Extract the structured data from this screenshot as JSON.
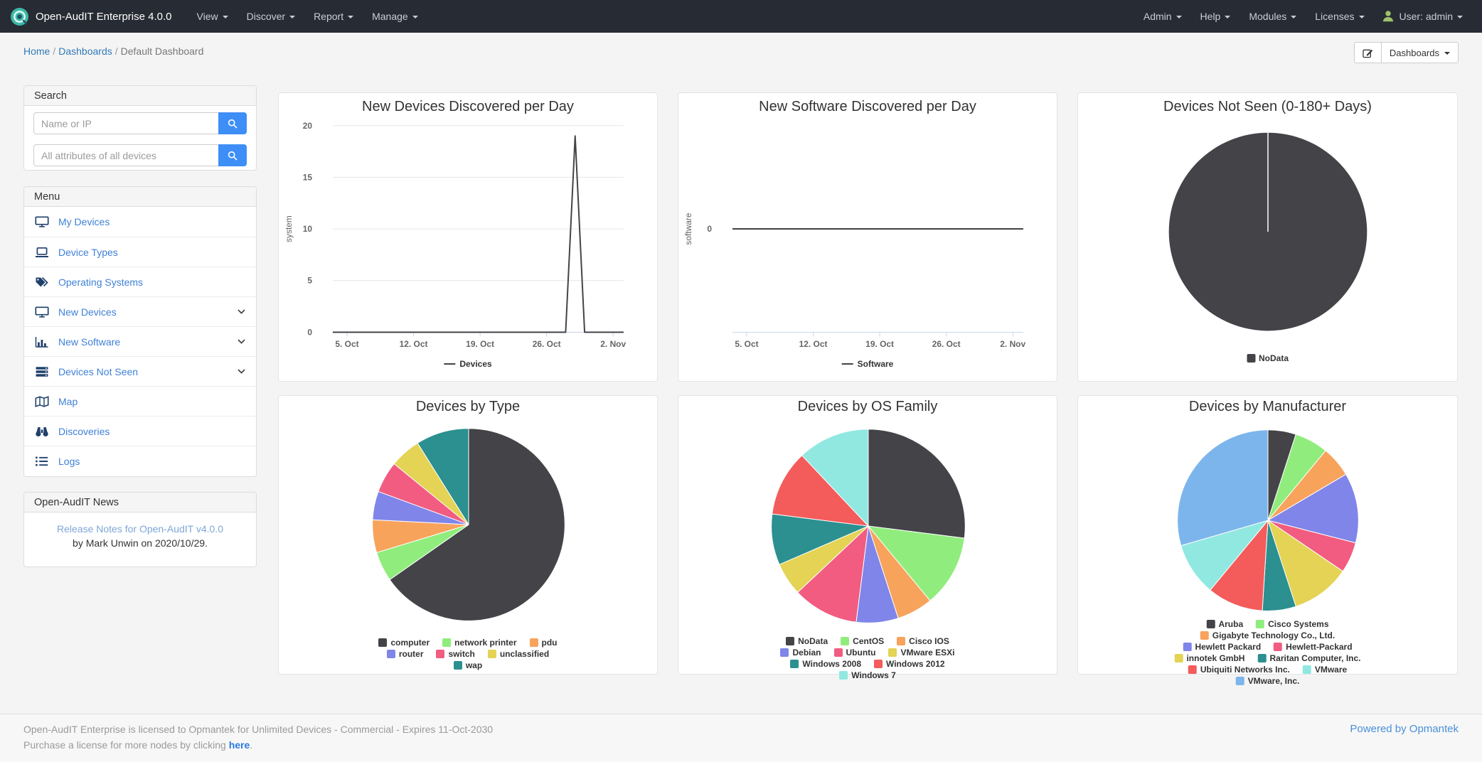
{
  "navbar": {
    "brand": "Open-AudIT Enterprise 4.0.0",
    "left_menus": [
      {
        "label": "View"
      },
      {
        "label": "Discover"
      },
      {
        "label": "Report"
      },
      {
        "label": "Manage"
      }
    ],
    "right_menus": [
      {
        "label": "Admin"
      },
      {
        "label": "Help"
      },
      {
        "label": "Modules"
      },
      {
        "label": "Licenses"
      }
    ],
    "user_label": "User: admin"
  },
  "breadcrumb": {
    "separator": "/",
    "items": [
      {
        "label": "Home",
        "link": true
      },
      {
        "label": "Dashboards",
        "link": true
      },
      {
        "label": "Default Dashboard",
        "link": false
      }
    ],
    "dashboards_button": "Dashboards"
  },
  "sidebar": {
    "search": {
      "title": "Search",
      "inputs": [
        {
          "placeholder": "Name or IP"
        },
        {
          "placeholder": "All attributes of all devices"
        }
      ]
    },
    "menu": {
      "title": "Menu",
      "items": [
        {
          "label": "My Devices",
          "icon": "desktop-icon",
          "expandable": false
        },
        {
          "label": "Device Types",
          "icon": "laptop-icon",
          "expandable": false
        },
        {
          "label": "Operating Systems",
          "icon": "tags-icon",
          "expandable": false
        },
        {
          "label": "New Devices",
          "icon": "desktop-icon",
          "expandable": true
        },
        {
          "label": "New Software",
          "icon": "bar-chart-icon",
          "expandable": true
        },
        {
          "label": "Devices Not Seen",
          "icon": "server-icon",
          "expandable": true
        },
        {
          "label": "Map",
          "icon": "map-icon",
          "expandable": false
        },
        {
          "label": "Discoveries",
          "icon": "binoculars-icon",
          "expandable": false
        },
        {
          "label": "Logs",
          "icon": "list-icon",
          "expandable": false
        }
      ]
    },
    "news": {
      "title": "Open-AudIT News",
      "link": "Release Notes for Open-AudIT v4.0.0",
      "byline": "by Mark Unwin on 2020/10/29."
    }
  },
  "footer": {
    "license_line": "Open-AudIT Enterprise is licensed to Opmantek for Unlimited Devices - Commercial - Expires 11-Oct-2030",
    "purchase_prefix": "Purchase a license for more nodes by clicking ",
    "purchase_link": "here",
    "purchase_suffix": ".",
    "powered": "Powered by Opmantek"
  },
  "chart_data": [
    {
      "type": "line",
      "title": "New Devices Discovered per Day",
      "ylabel": "system",
      "xlim": [
        3.5,
        34.1
      ],
      "ylim": [
        0,
        20
      ],
      "y_ticks": [
        0,
        5,
        10,
        15,
        20
      ],
      "x_ticks": [
        [
          5,
          "5. Oct"
        ],
        [
          12,
          "12. Oct"
        ],
        [
          19,
          "19. Oct"
        ],
        [
          26,
          "26. Oct"
        ],
        [
          33,
          "2. Nov"
        ]
      ],
      "grid": true,
      "legend_position": "bottom",
      "series": [
        {
          "name": "Devices",
          "color": "#434348",
          "points": [
            [
              3.5,
              0
            ],
            [
              28,
              0
            ],
            [
              29,
              19
            ],
            [
              30,
              0
            ],
            [
              34.1,
              0
            ]
          ]
        }
      ]
    },
    {
      "type": "line",
      "title": "New Software Discovered per Day",
      "ylabel": "software",
      "xlim": [
        3.5,
        34.1
      ],
      "ylim": [
        -1,
        1
      ],
      "y_ticks": [
        0
      ],
      "x_ticks": [
        [
          5,
          "5. Oct"
        ],
        [
          12,
          "12. Oct"
        ],
        [
          19,
          "19. Oct"
        ],
        [
          26,
          "26. Oct"
        ],
        [
          33,
          "2. Nov"
        ]
      ],
      "grid": false,
      "legend_position": "bottom",
      "series": [
        {
          "name": "Software",
          "color": "#434348",
          "points": [
            [
              3.5,
              0
            ],
            [
              34.1,
              0
            ]
          ]
        }
      ]
    },
    {
      "type": "pie",
      "title": "Devices Not Seen (0-180+ Days)",
      "legend_position": "bottom",
      "slices": [
        {
          "name": "NoData",
          "value": 100,
          "color": "#434348"
        }
      ]
    },
    {
      "type": "pie",
      "title": "Devices by Type",
      "legend_position": "bottom",
      "slices": [
        {
          "name": "computer",
          "value": 65.3,
          "color": "#434348"
        },
        {
          "name": "network printer",
          "value": 5.0,
          "color": "#90ed7d"
        },
        {
          "name": "pdu",
          "value": 5.5,
          "color": "#f7a35c"
        },
        {
          "name": "router",
          "value": 4.8,
          "color": "#8085e9"
        },
        {
          "name": "switch",
          "value": 5.3,
          "color": "#f15c80"
        },
        {
          "name": "unclassified",
          "value": 5.2,
          "color": "#e4d354"
        },
        {
          "name": "wap",
          "value": 8.9,
          "color": "#2b908f"
        }
      ]
    },
    {
      "type": "pie",
      "title": "Devices by OS Family",
      "legend_position": "bottom",
      "slices": [
        {
          "name": "NoData",
          "value": 27,
          "color": "#434348"
        },
        {
          "name": "CentOS",
          "value": 12,
          "color": "#90ed7d"
        },
        {
          "name": "Cisco IOS",
          "value": 6,
          "color": "#f7a35c"
        },
        {
          "name": "Debian",
          "value": 7,
          "color": "#8085e9"
        },
        {
          "name": "Ubuntu",
          "value": 11,
          "color": "#f15c80"
        },
        {
          "name": "VMware ESXi",
          "value": 5.5,
          "color": "#e4d354"
        },
        {
          "name": "Windows 2008",
          "value": 8.5,
          "color": "#2b908f"
        },
        {
          "name": "Windows 2012",
          "value": 11,
          "color": "#f45b5b"
        },
        {
          "name": "Windows 7",
          "value": 12,
          "color": "#91e8e1"
        }
      ]
    },
    {
      "type": "pie",
      "title": "Devices by Manufacturer",
      "legend_position": "bottom",
      "slices": [
        {
          "name": "Aruba",
          "value": 5,
          "color": "#434348"
        },
        {
          "name": "Cisco Systems",
          "value": 6,
          "color": "#90ed7d"
        },
        {
          "name": "Gigabyte Technology Co., Ltd.",
          "value": 5.5,
          "color": "#f7a35c"
        },
        {
          "name": "Hewlett Packard",
          "value": 12.5,
          "color": "#8085e9"
        },
        {
          "name": "Hewlett-Packard",
          "value": 5.5,
          "color": "#f15c80"
        },
        {
          "name": "innotek GmbH",
          "value": 10.5,
          "color": "#e4d354"
        },
        {
          "name": "Raritan Computer, Inc.",
          "value": 6,
          "color": "#2b908f"
        },
        {
          "name": "Ubiquiti Networks Inc.",
          "value": 10,
          "color": "#f45b5b"
        },
        {
          "name": "VMware",
          "value": 9.5,
          "color": "#91e8e1"
        },
        {
          "name": "VMware, Inc.",
          "value": 29.5,
          "color": "#7cb5ec"
        }
      ]
    }
  ]
}
